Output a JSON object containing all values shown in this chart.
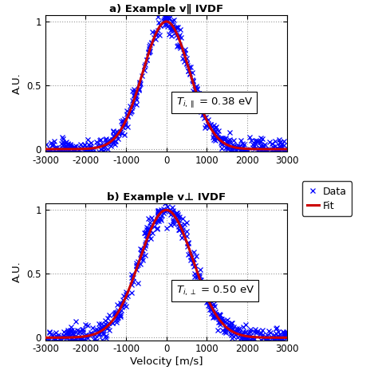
{
  "title_a": "a) Example v∥ IVDF",
  "title_b": "b) Example v⊥ IVDF",
  "xlabel": "Velocity [m/s]",
  "ylabel": "A.U.",
  "xlim": [
    -3000,
    3000
  ],
  "ylim_a": [
    -0.02,
    1.05
  ],
  "ylim_b": [
    -0.02,
    1.05
  ],
  "xticks": [
    -3000,
    -2000,
    -1000,
    0,
    1000,
    2000,
    3000
  ],
  "yticks": [
    0,
    0.5,
    1
  ],
  "sigma_a": 580,
  "sigma_b": 665,
  "data_color": "#0000FF",
  "fit_color": "#CC0000",
  "background_color": "#FFFFFF",
  "legend_labels": [
    "Data",
    "Fit"
  ],
  "marker": "x",
  "markersize": 4,
  "fit_linewidth": 2.2,
  "seed_a": 42,
  "seed_b": 99
}
